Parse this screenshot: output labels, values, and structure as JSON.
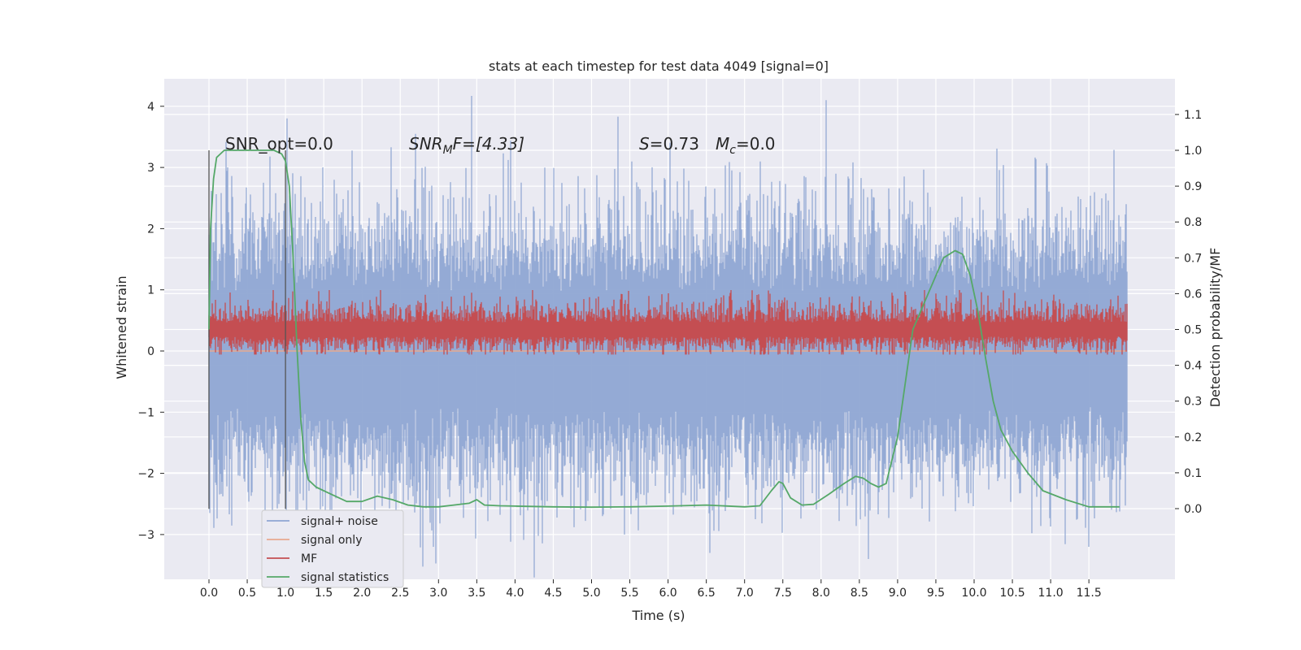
{
  "chart_data": {
    "type": "line",
    "title": "stats at each timestep for test data 4049 [signal=0]",
    "xlabel": "Time (s)",
    "ylabel_left": "Whitened strain",
    "ylabel_right": "Detection probability/MF",
    "xlim": [
      -0.58,
      12.6
    ],
    "ylim_left": [
      -3.75,
      4.45
    ],
    "ylim_right": [
      -0.2,
      1.19
    ],
    "x_ticks": [
      0.0,
      0.5,
      1.0,
      1.5,
      2.0,
      2.5,
      3.0,
      3.5,
      4.0,
      4.5,
      5.0,
      5.5,
      6.0,
      6.5,
      7.0,
      7.5,
      8.0,
      8.5,
      9.0,
      9.5,
      10.0,
      10.5,
      11.0,
      11.5
    ],
    "x_tick_labels": [
      "0.0",
      "0.5",
      "1.0",
      "1.5",
      "2.0",
      "2.5",
      "3.0",
      "3.5",
      "4.0",
      "4.5",
      "5.0",
      "5.5",
      "6.0",
      "6.5",
      "7.0",
      "7.5",
      "8.0",
      "8.5",
      "9.0",
      "9.5",
      "10.0",
      "10.5",
      "11.0",
      "11.5"
    ],
    "y_left_ticks": [
      4,
      3,
      2,
      1,
      0,
      -1,
      -2,
      -3
    ],
    "y_left_tick_labels": [
      "4",
      "3",
      "2",
      "1",
      "0",
      "−1",
      "−2",
      "−3"
    ],
    "y_right_ticks": [
      1.1,
      1.0,
      0.9,
      0.8,
      0.7,
      0.6,
      0.5,
      0.4,
      0.3,
      0.2,
      0.1,
      0.0
    ],
    "y_right_tick_labels": [
      "1.1",
      "1.0",
      "0.9",
      "0.8",
      "0.7",
      "0.6",
      "0.5",
      "0.4",
      "0.3",
      "0.2",
      "0.1",
      "0.0"
    ],
    "grid": true,
    "legend_position": "lower-left",
    "window_markers": [
      0.0,
      1.0
    ],
    "annotations": {
      "snr_opt": "SNR_opt=0.0",
      "snr_mf_prefix": "SNR",
      "snr_mf_sub": "M",
      "snr_mf_rest": "F=[4.33]",
      "s_label": "S",
      "s_value": "=0.73",
      "mc_label": "M",
      "mc_sub": "c",
      "mc_value": "=0.0"
    },
    "series": [
      {
        "name": "signal+ noise",
        "axis": "left",
        "color": "#8fa6d3",
        "note": "whitened strain noise ~ N(0,1), spanning 0.0–12.0 s, extremes about +4.1 and -3.4",
        "x_range": [
          0.0,
          12.0
        ],
        "peaks": [
          [
            2.38,
            3.33
          ],
          [
            5.35,
            3.83
          ],
          [
            8.07,
            4.1
          ],
          [
            8.62,
            -3.4
          ],
          [
            2.93,
            -3.2
          ],
          [
            11.5,
            -3.2
          ],
          [
            6.55,
            -3.3
          ],
          [
            1.99,
            -3.3
          ]
        ]
      },
      {
        "name": "signal only",
        "axis": "left",
        "color": "#e8a98f",
        "note": "no injected signal (signal=0), flat at 0",
        "x": [
          0.0,
          12.0
        ],
        "y": [
          0.0,
          0.0
        ]
      },
      {
        "name": "MF",
        "axis": "right",
        "color": "#c44e52",
        "note": "matched-filter output fluctuating about 0.45–0.55 with peaks near 0.6",
        "x_range": [
          0.0,
          12.0
        ],
        "baseline": 0.5,
        "max": 0.61,
        "min": 0.43
      },
      {
        "name": "signal statistics",
        "axis": "right",
        "color": "#55a868",
        "x": [
          0.0,
          0.02,
          0.06,
          0.1,
          0.15,
          0.2,
          0.3,
          0.5,
          0.7,
          0.85,
          0.95,
          1.0,
          1.05,
          1.1,
          1.15,
          1.2,
          1.25,
          1.3,
          1.4,
          1.6,
          1.8,
          2.0,
          2.2,
          2.4,
          2.6,
          2.8,
          3.0,
          3.2,
          3.4,
          3.5,
          3.6,
          3.8,
          4.0,
          4.5,
          5.0,
          5.5,
          6.0,
          6.5,
          7.0,
          7.2,
          7.35,
          7.45,
          7.5,
          7.6,
          7.75,
          7.9,
          8.1,
          8.3,
          8.45,
          8.55,
          8.65,
          8.75,
          8.85,
          9.0,
          9.2,
          9.4,
          9.6,
          9.75,
          9.85,
          9.95,
          10.05,
          10.15,
          10.25,
          10.35,
          10.5,
          10.7,
          10.9,
          11.2,
          11.5,
          11.9
        ],
        "y": [
          0.5,
          0.78,
          0.92,
          0.98,
          0.99,
          1.0,
          1.0,
          1.0,
          1.0,
          1.0,
          0.99,
          0.97,
          0.9,
          0.7,
          0.45,
          0.25,
          0.13,
          0.08,
          0.06,
          0.04,
          0.02,
          0.02,
          0.035,
          0.025,
          0.01,
          0.005,
          0.005,
          0.01,
          0.015,
          0.025,
          0.01,
          0.008,
          0.007,
          0.005,
          0.004,
          0.005,
          0.007,
          0.01,
          0.005,
          0.008,
          0.05,
          0.075,
          0.07,
          0.03,
          0.01,
          0.012,
          0.04,
          0.07,
          0.09,
          0.085,
          0.07,
          0.06,
          0.07,
          0.2,
          0.5,
          0.6,
          0.7,
          0.72,
          0.71,
          0.65,
          0.55,
          0.42,
          0.3,
          0.22,
          0.16,
          0.1,
          0.05,
          0.025,
          0.005,
          0.005
        ]
      }
    ]
  }
}
